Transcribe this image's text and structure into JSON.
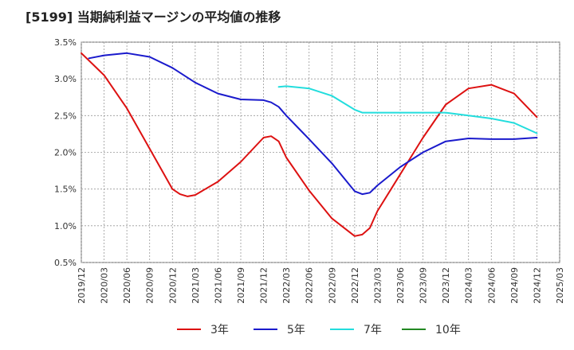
{
  "chart_data": {
    "type": "line",
    "title": "[5199]  当期純利益マージンの平均値の推移",
    "xlabel": "",
    "ylabel": "",
    "ylim": [
      0.5,
      3.5
    ],
    "yticks": [
      "0.5%",
      "1.0%",
      "1.5%",
      "2.0%",
      "2.5%",
      "3.0%",
      "3.5%"
    ],
    "xticks": [
      "2019/12",
      "2020/03",
      "2020/06",
      "2020/09",
      "2020/12",
      "2021/03",
      "2021/06",
      "2021/09",
      "2021/12",
      "2022/03",
      "2022/06",
      "2022/09",
      "2022/12",
      "2023/03",
      "2023/06",
      "2023/09",
      "2023/12",
      "2024/03",
      "2024/06",
      "2024/09",
      "2024/12",
      "2025/03"
    ],
    "grid": true,
    "legend_position": "bottom",
    "series": [
      {
        "name": "3年",
        "color": "#dd1111",
        "points": [
          [
            "2019/12",
            3.35
          ],
          [
            "2020/03",
            3.05
          ],
          [
            "2020/06",
            2.6
          ],
          [
            "2020/09",
            2.05
          ],
          [
            "2020/12",
            1.5
          ],
          [
            "2021/01",
            1.43
          ],
          [
            "2021/02",
            1.4
          ],
          [
            "2021/03",
            1.42
          ],
          [
            "2021/06",
            1.6
          ],
          [
            "2021/09",
            1.87
          ],
          [
            "2021/12",
            2.2
          ],
          [
            "2022/01",
            2.22
          ],
          [
            "2022/02",
            2.15
          ],
          [
            "2022/03",
            1.93
          ],
          [
            "2022/06",
            1.48
          ],
          [
            "2022/09",
            1.1
          ],
          [
            "2022/12",
            0.86
          ],
          [
            "2023/01",
            0.88
          ],
          [
            "2023/02",
            0.97
          ],
          [
            "2023/03",
            1.2
          ],
          [
            "2023/06",
            1.7
          ],
          [
            "2023/09",
            2.2
          ],
          [
            "2023/12",
            2.65
          ],
          [
            "2024/03",
            2.87
          ],
          [
            "2024/06",
            2.92
          ],
          [
            "2024/09",
            2.8
          ],
          [
            "2024/12",
            2.48
          ]
        ]
      },
      {
        "name": "5年",
        "color": "#1a1acc",
        "points": [
          [
            "2020/01",
            3.28
          ],
          [
            "2020/03",
            3.32
          ],
          [
            "2020/06",
            3.35
          ],
          [
            "2020/09",
            3.3
          ],
          [
            "2020/12",
            3.15
          ],
          [
            "2021/03",
            2.95
          ],
          [
            "2021/06",
            2.8
          ],
          [
            "2021/09",
            2.72
          ],
          [
            "2021/12",
            2.71
          ],
          [
            "2022/01",
            2.68
          ],
          [
            "2022/02",
            2.62
          ],
          [
            "2022/03",
            2.5
          ],
          [
            "2022/06",
            2.18
          ],
          [
            "2022/09",
            1.85
          ],
          [
            "2022/12",
            1.47
          ],
          [
            "2023/01",
            1.43
          ],
          [
            "2023/02",
            1.45
          ],
          [
            "2023/03",
            1.55
          ],
          [
            "2023/06",
            1.8
          ],
          [
            "2023/09",
            2.0
          ],
          [
            "2023/12",
            2.15
          ],
          [
            "2024/03",
            2.19
          ],
          [
            "2024/06",
            2.18
          ],
          [
            "2024/09",
            2.18
          ],
          [
            "2024/12",
            2.2
          ]
        ]
      },
      {
        "name": "7年",
        "color": "#22dddd",
        "points": [
          [
            "2022/02",
            2.89
          ],
          [
            "2022/03",
            2.9
          ],
          [
            "2022/06",
            2.87
          ],
          [
            "2022/09",
            2.77
          ],
          [
            "2022/12",
            2.58
          ],
          [
            "2023/01",
            2.54
          ],
          [
            "2023/03",
            2.54
          ],
          [
            "2023/06",
            2.54
          ],
          [
            "2023/09",
            2.54
          ],
          [
            "2023/12",
            2.54
          ],
          [
            "2024/03",
            2.5
          ],
          [
            "2024/06",
            2.46
          ],
          [
            "2024/09",
            2.4
          ],
          [
            "2024/12",
            2.26
          ]
        ]
      },
      {
        "name": "10年",
        "color": "#228822",
        "points": []
      }
    ]
  }
}
